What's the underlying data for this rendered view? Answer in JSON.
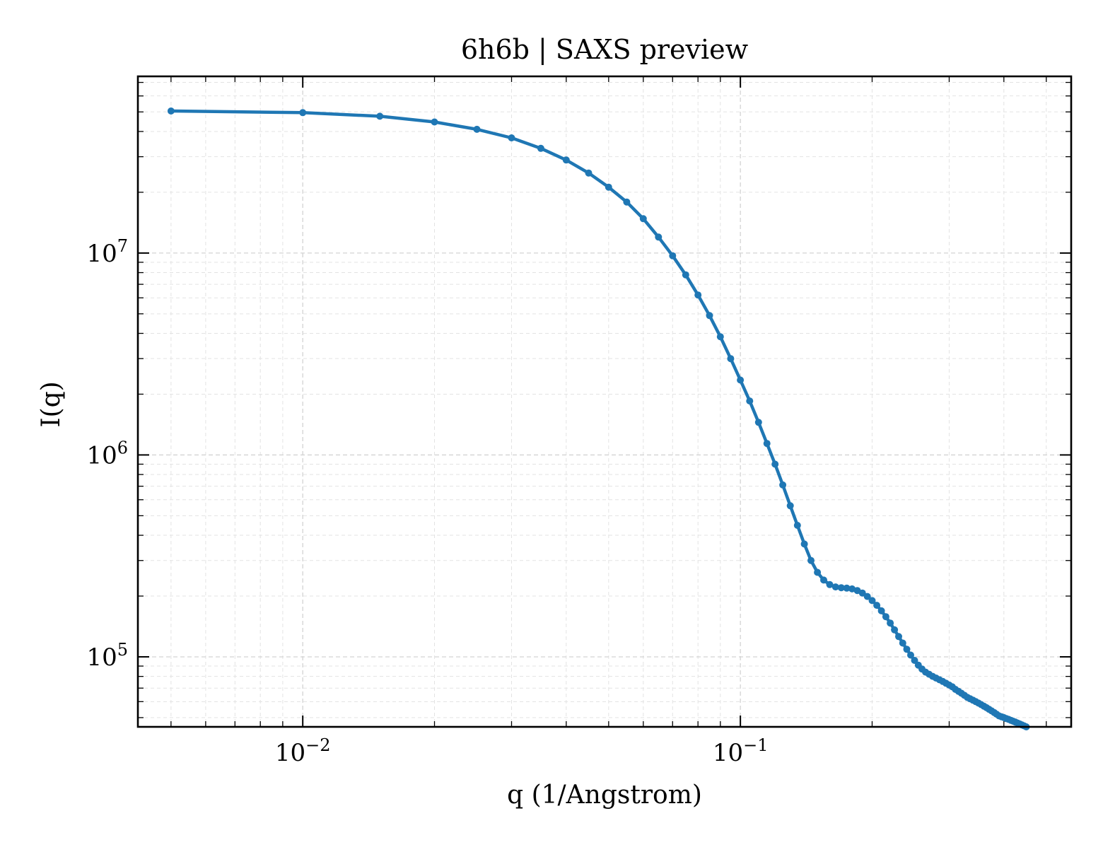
{
  "chart_data": {
    "type": "line",
    "title": "6h6b | SAXS preview",
    "xlabel": "q (1/Angstrom)",
    "ylabel": "I(q)",
    "xscale": "log",
    "yscale": "log",
    "xlim": [
      0.0042,
      0.57
    ],
    "ylim": [
      45000,
      75000000
    ],
    "xticks": [
      {
        "value": 0.01,
        "base": "10",
        "exp": "−2"
      },
      {
        "value": 0.1,
        "base": "10",
        "exp": "−1"
      }
    ],
    "yticks": [
      {
        "value": 100000,
        "base": "10",
        "exp": "5"
      },
      {
        "value": 1000000,
        "base": "10",
        "exp": "6"
      },
      {
        "value": 10000000,
        "base": "10",
        "exp": "7"
      }
    ],
    "grid": true,
    "markers": true,
    "colors": {
      "series": "#1f77b4",
      "frame": "#000000",
      "grid": "#d3d3d3"
    },
    "series": [
      {
        "x": [
          0.005,
          0.01,
          0.015,
          0.02,
          0.025,
          0.03,
          0.035,
          0.04,
          0.045,
          0.05,
          0.055,
          0.06,
          0.065,
          0.07,
          0.075,
          0.08,
          0.085,
          0.09,
          0.095,
          0.1,
          0.105,
          0.11,
          0.115,
          0.12,
          0.125,
          0.13,
          0.135,
          0.14,
          0.145,
          0.15,
          0.155,
          0.16,
          0.165,
          0.17,
          0.175,
          0.18,
          0.185,
          0.19,
          0.195,
          0.2,
          0.205,
          0.21,
          0.215,
          0.22,
          0.225,
          0.23,
          0.235,
          0.24,
          0.245,
          0.25,
          0.255,
          0.26,
          0.265,
          0.27,
          0.275,
          0.28,
          0.285,
          0.29,
          0.295,
          0.3,
          0.305,
          0.31,
          0.315,
          0.32,
          0.325,
          0.33,
          0.335,
          0.34,
          0.345,
          0.35,
          0.355,
          0.36,
          0.365,
          0.37,
          0.375,
          0.38,
          0.385,
          0.39,
          0.395,
          0.4,
          0.405,
          0.41,
          0.415,
          0.42,
          0.425,
          0.43,
          0.435,
          0.44,
          0.445,
          0.45,
          0.455,
          0.46,
          0.465,
          0.47,
          0.475,
          0.48,
          0.485,
          0.49,
          0.495,
          0.5
        ],
        "y": [
          50500000,
          49600000,
          47600000,
          44600000,
          41000000,
          37200000,
          33000000,
          28900000,
          24900000,
          21200000,
          17900000,
          14800000,
          12000000,
          9700000,
          7800000,
          6200000,
          4900000,
          3850000,
          3000000,
          2350000,
          1850000,
          1450000,
          1140000,
          900000,
          710000,
          560000,
          448000,
          362000,
          300000,
          262000,
          240000,
          228000,
          222000,
          220000,
          219000,
          217000,
          213000,
          207000,
          199000,
          190000,
          180000,
          169000,
          158000,
          147000,
          136000,
          126000,
          117000,
          109000,
          102000,
          96000,
          91000,
          87000,
          84000,
          82000,
          80000,
          78500,
          77000,
          75500,
          74000,
          72500,
          71000,
          69000,
          67500,
          66000,
          64500,
          63000,
          62000,
          61000,
          60000,
          59000,
          58000,
          57000,
          56000,
          55000,
          54000,
          53000,
          52000,
          51000,
          50500,
          50000,
          49500,
          49000,
          48500,
          48000,
          47500,
          47000,
          46500,
          46000,
          45500,
          45000,
          44500,
          44000,
          43500,
          43000,
          42500,
          42000,
          41500,
          41000,
          40500,
          40000
        ]
      }
    ]
  }
}
